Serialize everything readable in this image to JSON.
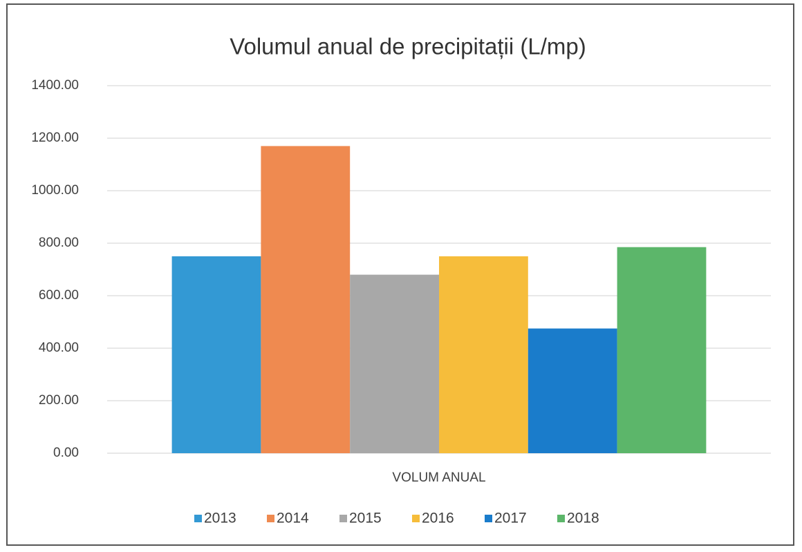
{
  "chart_data": {
    "type": "bar",
    "title": "Volumul anual de precipitații (L/mp)",
    "categories": [
      "VOLUM ANUAL"
    ],
    "series": [
      {
        "name": "2013",
        "color": "#3399d4",
        "values": [
          750
        ]
      },
      {
        "name": "2014",
        "color": "#ef8a50",
        "values": [
          1170
        ]
      },
      {
        "name": "2015",
        "color": "#a8a8a8",
        "values": [
          680
        ]
      },
      {
        "name": "2016",
        "color": "#f6bd3b",
        "values": [
          750
        ]
      },
      {
        "name": "2017",
        "color": "#1a7ccb",
        "values": [
          475
        ]
      },
      {
        "name": "2018",
        "color": "#5cb66a",
        "values": [
          785
        ]
      }
    ],
    "ylim": [
      0,
      1400
    ],
    "yticks": [
      {
        "value": 0,
        "label": "0.00"
      },
      {
        "value": 200,
        "label": "200.00"
      },
      {
        "value": 400,
        "label": "400.00"
      },
      {
        "value": 600,
        "label": "600.00"
      },
      {
        "value": 800,
        "label": "800.00"
      },
      {
        "value": 1000,
        "label": "1000.00"
      },
      {
        "value": 1200,
        "label": "1200.00"
      },
      {
        "value": 1400,
        "label": "1400.00"
      }
    ],
    "grid": true,
    "legend": "bottom"
  }
}
